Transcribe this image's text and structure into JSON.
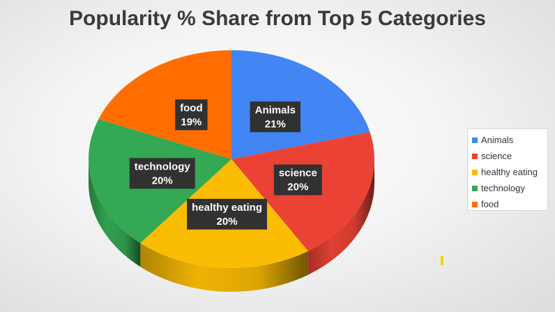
{
  "chart_data": {
    "type": "pie",
    "title": "Popularity % Share from Top 5 Categories",
    "slices": [
      {
        "label": "Animals",
        "value": 21,
        "display": "21%",
        "color": "#4285f4"
      },
      {
        "label": "science",
        "value": 20,
        "display": "20%",
        "color": "#ea4335"
      },
      {
        "label": "healthy eating",
        "value": 20,
        "display": "20%",
        "color": "#fbbc04"
      },
      {
        "label": "technology",
        "value": 20,
        "display": "20%",
        "color": "#34a853"
      },
      {
        "label": "food",
        "value": 19,
        "display": "19%",
        "color": "#ff6d01"
      }
    ],
    "legend_position": "right",
    "style": "3d"
  }
}
